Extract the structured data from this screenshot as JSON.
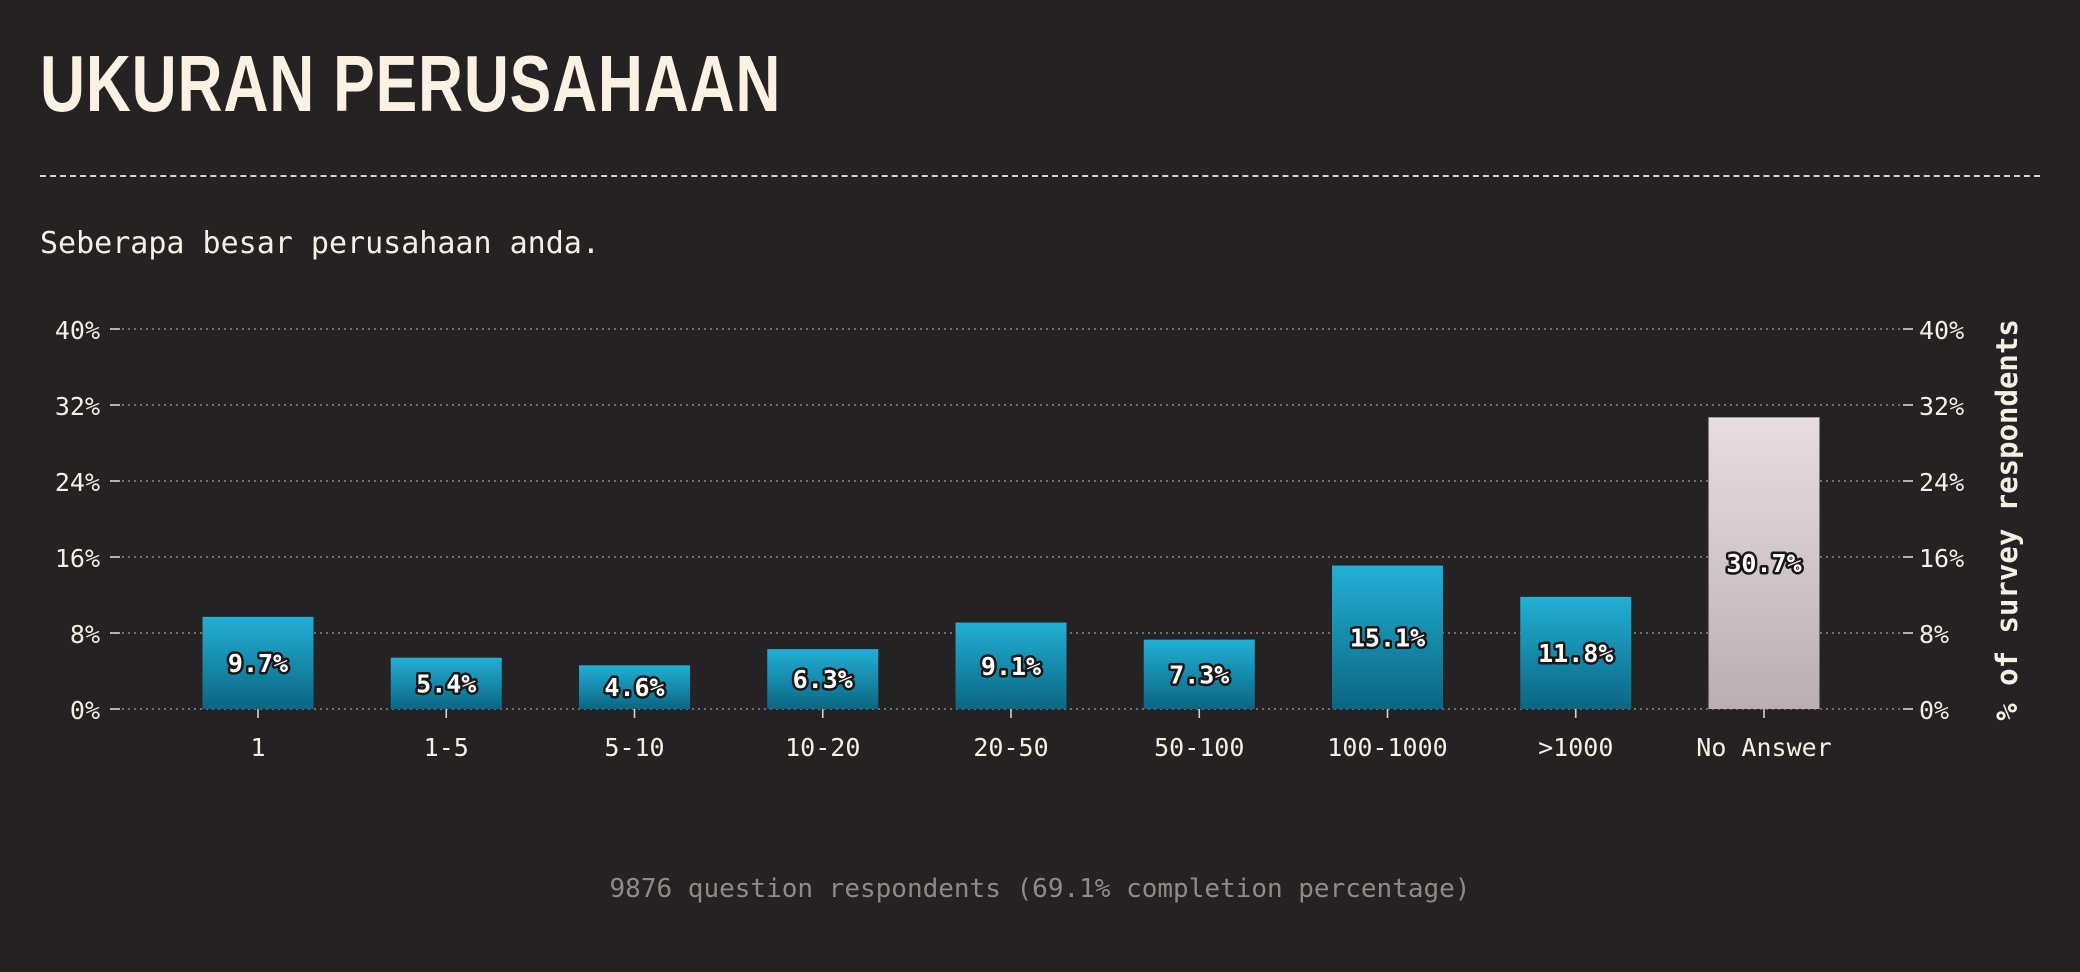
{
  "chart_data": {
    "type": "bar",
    "title": "UKURAN PERUSAHAAN",
    "subtitle": "Seberapa besar perusahaan anda.",
    "ylabel": "% of survey respondents",
    "ylim": [
      0,
      40
    ],
    "yticks": [
      "0%",
      "8%",
      "16%",
      "24%",
      "32%",
      "40%"
    ],
    "ytick_values": [
      0,
      8,
      16,
      24,
      32,
      40
    ],
    "grid": true,
    "categories": [
      "1",
      "1-5",
      "5-10",
      "10-20",
      "20-50",
      "50-100",
      "100-1000",
      ">1000",
      "No Answer"
    ],
    "values": [
      9.7,
      5.4,
      4.6,
      6.3,
      9.1,
      7.3,
      15.1,
      11.8,
      30.7
    ],
    "data_labels": [
      "9.7%",
      "5.4%",
      "4.6%",
      "6.3%",
      "9.1%",
      "7.3%",
      "15.1%",
      "11.8%",
      "30.7%"
    ],
    "footer": "9876 question respondents (69.1% completion percentage)"
  },
  "colors": {
    "background": "#252223",
    "bar_top": "#22b0d6",
    "bar_bottom": "#0b6682",
    "highlight_top": "#e8dde0",
    "highlight_bottom": "#b9aeb1",
    "text": "#f6efe4",
    "footer_text": "#8f8a87"
  }
}
